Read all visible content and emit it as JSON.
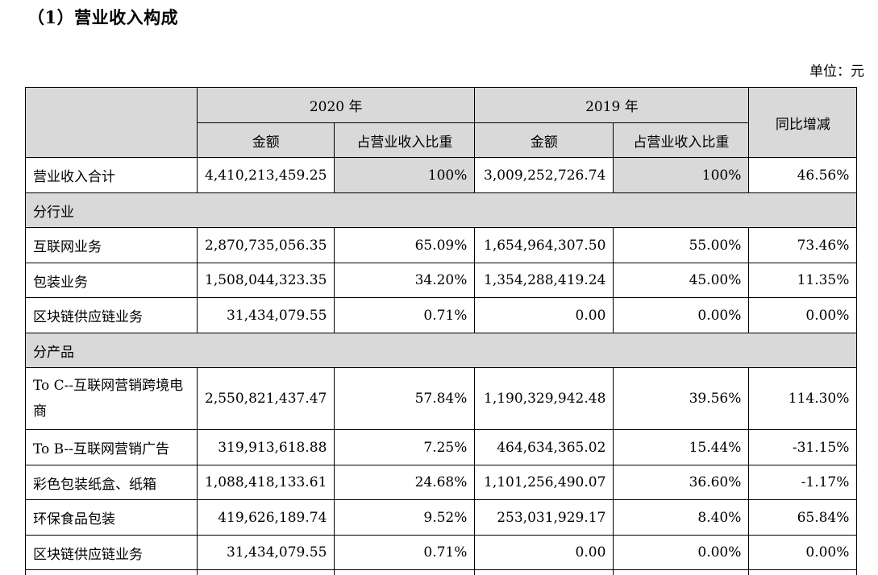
{
  "title": "（1）营业收入构成",
  "unit": "单位：元",
  "header": {
    "year_a": "2020 年",
    "year_b": "2019 年",
    "yoy": "同比增减",
    "amount": "金额",
    "ratio": "占营业收入比重"
  },
  "total": {
    "label": "营业收入合计",
    "amt_2020": "4,410,213,459.25",
    "pct_2020": "100%",
    "amt_2019": "3,009,252,726.74",
    "pct_2019": "100%",
    "yoy": "46.56%"
  },
  "industry_section": "分行业",
  "industry_rows": [
    {
      "label": "互联网业务",
      "amt_2020": "2,870,735,056.35",
      "pct_2020": "65.09%",
      "amt_2019": "1,654,964,307.50",
      "pct_2019": "55.00%",
      "yoy": "73.46%"
    },
    {
      "label": "包装业务",
      "amt_2020": "1,508,044,323.35",
      "pct_2020": "34.20%",
      "amt_2019": "1,354,288,419.24",
      "pct_2019": "45.00%",
      "yoy": "11.35%"
    },
    {
      "label": "区块链供应链业务",
      "amt_2020": "31,434,079.55",
      "pct_2020": "0.71%",
      "amt_2019": "0.00",
      "pct_2019": "0.00%",
      "yoy": "0.00%"
    }
  ],
  "product_section": "分产品",
  "product_rows": [
    {
      "label": "To C--互联网营销跨境电商",
      "amt_2020": "2,550,821,437.47",
      "pct_2020": "57.84%",
      "amt_2019": "1,190,329,942.48",
      "pct_2019": "39.56%",
      "yoy": "114.30%"
    },
    {
      "label": "To B--互联网营销广告",
      "amt_2020": "319,913,618.88",
      "pct_2020": "7.25%",
      "amt_2019": "464,634,365.02",
      "pct_2019": "15.44%",
      "yoy": "-31.15%"
    },
    {
      "label": "彩色包装纸盒、纸箱",
      "amt_2020": "1,088,418,133.61",
      "pct_2020": "24.68%",
      "amt_2019": "1,101,256,490.07",
      "pct_2019": "36.60%",
      "yoy": "-1.17%"
    },
    {
      "label": "环保食品包装",
      "amt_2020": "419,626,189.74",
      "pct_2020": "9.52%",
      "amt_2019": "253,031,929.17",
      "pct_2019": "8.40%",
      "yoy": "65.84%"
    },
    {
      "label": "区块链供应链业务",
      "amt_2020": "31,434,079.55",
      "pct_2020": "0.71%",
      "amt_2019": "0.00",
      "pct_2019": "0.00%",
      "yoy": "0.00%"
    }
  ]
}
